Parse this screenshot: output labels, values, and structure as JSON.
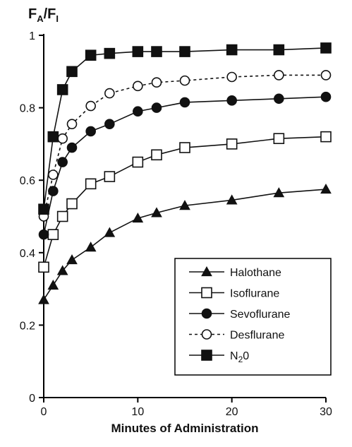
{
  "chart_data": {
    "type": "line",
    "title": "",
    "ylabel": {
      "main": "F",
      "sub_a": "A",
      "sep": "/F",
      "sub_i": "I"
    },
    "xlabel": "Minutes of Administration",
    "xlim": [
      0,
      30
    ],
    "ylim": [
      0,
      1
    ],
    "xticks": [
      0,
      10,
      20,
      30
    ],
    "yticks": [
      0,
      0.2,
      0.4,
      0.6,
      0.8,
      1
    ],
    "ytick_labels": [
      "0",
      "0.2",
      "0.4",
      "0.6",
      "0.8",
      "1"
    ],
    "xtick_labels": [
      "0",
      "10",
      "20",
      "30"
    ],
    "grid": false,
    "legend_position": "bottom-right",
    "series": [
      {
        "name": "Halothane",
        "marker": "triangle-filled",
        "dash": false,
        "x": [
          0,
          1,
          2,
          3,
          5,
          7,
          10,
          12,
          15,
          20,
          25,
          30
        ],
        "y": [
          0.27,
          0.31,
          0.35,
          0.38,
          0.415,
          0.455,
          0.495,
          0.51,
          0.53,
          0.545,
          0.565,
          0.575
        ]
      },
      {
        "name": "Isoflurane",
        "marker": "square-open",
        "dash": false,
        "x": [
          0,
          1,
          2,
          3,
          5,
          7,
          10,
          12,
          15,
          20,
          25,
          30
        ],
        "y": [
          0.36,
          0.45,
          0.5,
          0.535,
          0.59,
          0.61,
          0.65,
          0.67,
          0.69,
          0.7,
          0.715,
          0.72
        ]
      },
      {
        "name": "Sevoflurane",
        "marker": "circle-filled",
        "dash": false,
        "x": [
          0,
          1,
          2,
          3,
          5,
          7,
          10,
          12,
          15,
          20,
          25,
          30
        ],
        "y": [
          0.45,
          0.57,
          0.65,
          0.69,
          0.735,
          0.755,
          0.79,
          0.8,
          0.815,
          0.82,
          0.825,
          0.83
        ]
      },
      {
        "name": "Desflurane",
        "marker": "circle-open",
        "dash": true,
        "x": [
          0,
          1,
          2,
          3,
          5,
          7,
          10,
          12,
          15,
          20,
          25,
          30
        ],
        "y": [
          0.5,
          0.615,
          0.715,
          0.755,
          0.805,
          0.84,
          0.86,
          0.87,
          0.875,
          0.885,
          0.89,
          0.89
        ]
      },
      {
        "name": "N20",
        "marker": "square-filled",
        "dash": false,
        "x": [
          0,
          1,
          2,
          3,
          5,
          7,
          10,
          12,
          15,
          20,
          25,
          30
        ],
        "y": [
          0.52,
          0.72,
          0.85,
          0.9,
          0.945,
          0.95,
          0.955,
          0.955,
          0.955,
          0.96,
          0.96,
          0.965
        ]
      }
    ]
  }
}
